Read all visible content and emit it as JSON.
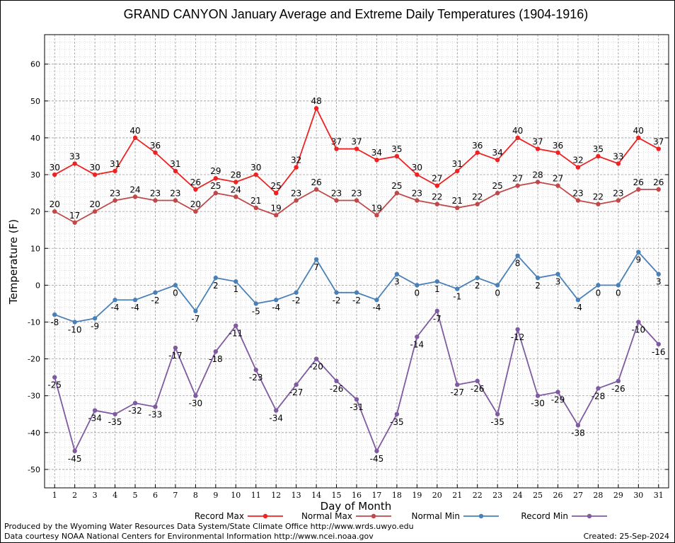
{
  "chart_data": {
    "type": "line",
    "title": "GRAND CANYON January Average and Extreme Daily Temperatures (1904-1916)",
    "xlabel": "Day of Month",
    "ylabel": "Temperature (F)",
    "xlim": [
      0.5,
      31.5
    ],
    "ylim": [
      -55,
      68
    ],
    "yticks": [
      -50,
      -40,
      -30,
      -20,
      -10,
      0,
      10,
      20,
      30,
      40,
      50,
      60
    ],
    "x": [
      1,
      2,
      3,
      4,
      5,
      6,
      7,
      8,
      9,
      10,
      11,
      12,
      13,
      14,
      15,
      16,
      17,
      18,
      19,
      20,
      21,
      22,
      23,
      24,
      25,
      26,
      27,
      28,
      29,
      30,
      31
    ],
    "grid": true,
    "legend_position": "bottom",
    "series": [
      {
        "name": "Record Max",
        "color": "#ee2222",
        "label_pos": "above",
        "values": [
          30,
          33,
          30,
          31,
          40,
          36,
          31,
          26,
          29,
          28,
          30,
          25,
          32,
          48,
          37,
          37,
          34,
          35,
          30,
          27,
          31,
          36,
          34,
          40,
          37,
          36,
          32,
          35,
          33,
          40,
          37
        ]
      },
      {
        "name": "Normal Max",
        "color": "#c04848",
        "label_pos": "above",
        "values": [
          20,
          17,
          20,
          23,
          24,
          23,
          23,
          20,
          25,
          24,
          21,
          19,
          23,
          26,
          23,
          23,
          19,
          25,
          23,
          22,
          21,
          22,
          25,
          27,
          28,
          27,
          23,
          22,
          23,
          26,
          26
        ]
      },
      {
        "name": "Normal Min",
        "color": "#4a80b8",
        "label_pos": "below",
        "values": [
          -8,
          -10,
          -9,
          -4,
          -4,
          -2,
          0,
          -7,
          2,
          1,
          -5,
          -4,
          -2,
          7,
          -2,
          -2,
          -4,
          3,
          0,
          1,
          -1,
          2,
          0,
          8,
          2,
          3,
          -4,
          0,
          0,
          9,
          3
        ]
      },
      {
        "name": "Record Min",
        "color": "#7e5aa0",
        "label_pos": "below",
        "values": [
          -25,
          -45,
          -34,
          -35,
          -32,
          -33,
          -17,
          -30,
          -18,
          -11,
          -23,
          -34,
          -27,
          -20,
          -26,
          -31,
          -45,
          -35,
          -14,
          -7,
          -27,
          -26,
          -35,
          -12,
          -30,
          -29,
          -38,
          -28,
          -26,
          -10,
          -16
        ]
      }
    ]
  },
  "footer": {
    "produced_by": "Produced by the Wyoming Water Resources Data System/State Climate Office http://www.wrds.uwyo.edu",
    "data_courtesy": "Data courtesy NOAA National Centers for Environmental Information http://www.ncei.noaa.gov",
    "created": "Created:  25-Sep-2024"
  }
}
